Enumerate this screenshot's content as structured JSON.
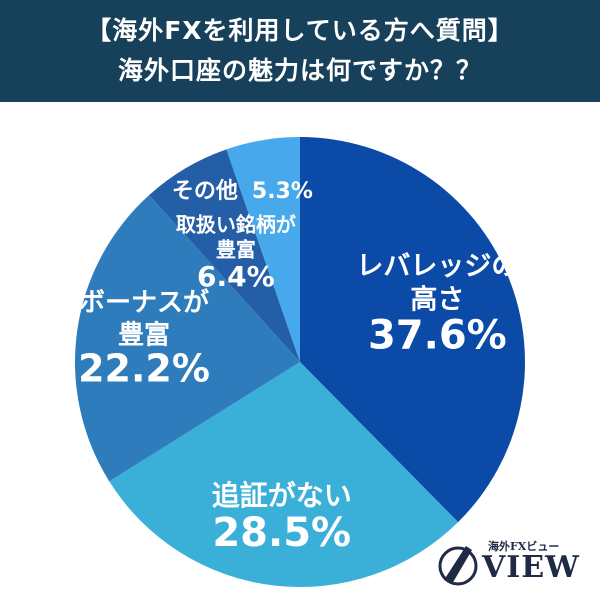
{
  "header": {
    "line1": "【海外FXを利用している方へ質問】",
    "line2": "海外口座の魅力は何ですか？？"
  },
  "chart_data": {
    "type": "pie",
    "title": "【海外FXを利用している方へ質問】海外口座の魅力は何ですか？？",
    "slices": [
      {
        "label": [
          "レバレッジの",
          "高さ"
        ],
        "value": 37.6,
        "value_text": "37.6%",
        "color": "#0b4aa6"
      },
      {
        "label": [
          "追証がない"
        ],
        "value": 28.5,
        "value_text": "28.5%",
        "color": "#3ab0d8"
      },
      {
        "label": [
          "ボーナスが",
          "豊富"
        ],
        "value": 22.2,
        "value_text": "22.2%",
        "color": "#2f7cbc"
      },
      {
        "label": [
          "取扱い銘柄が",
          "豊富"
        ],
        "value": 6.4,
        "value_text": "6.4%",
        "color": "#245ea6"
      },
      {
        "label": [
          "その他"
        ],
        "value": 5.3,
        "value_text": "5.3%",
        "color": "#47a8ec"
      }
    ]
  },
  "logo": {
    "small_text": "海外FXビュー",
    "main_text": "VIEW"
  }
}
